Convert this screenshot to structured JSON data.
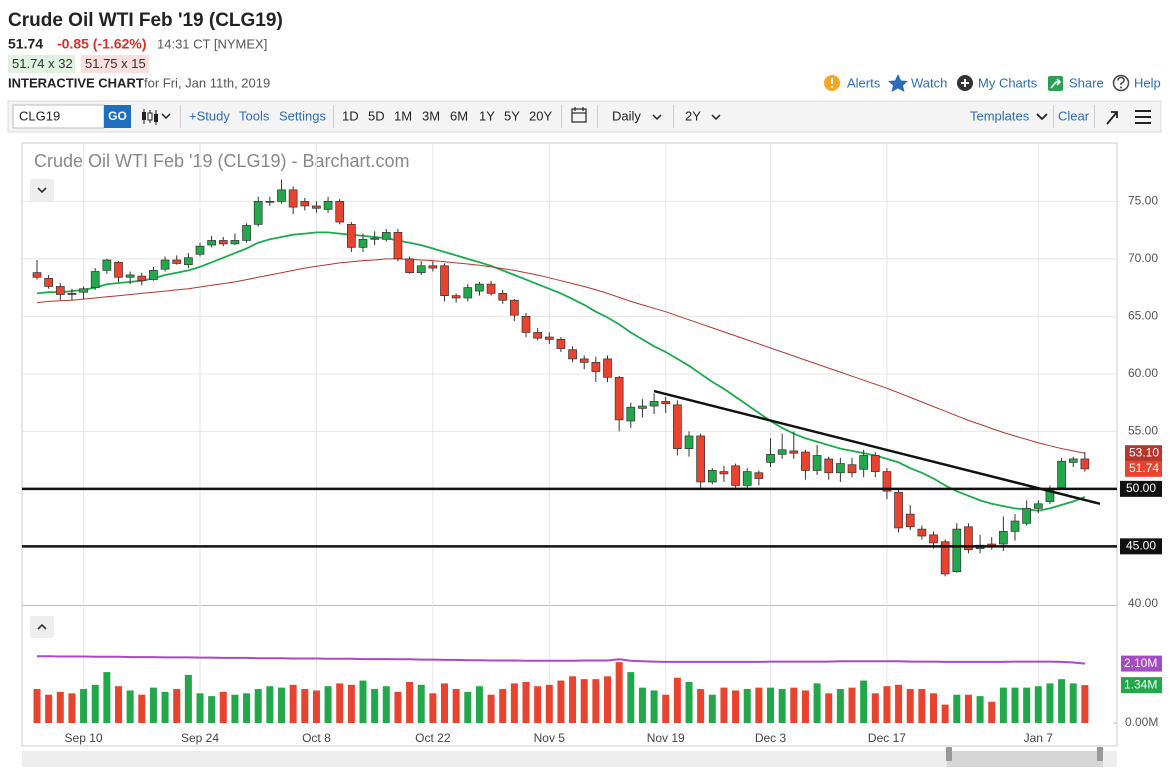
{
  "header": {
    "title": "Crude Oil WTI Feb '19 (CLG19)",
    "last": "51.74",
    "change": "-0.85 (-1.62%)",
    "time": "14:31 CT [NYMEX]",
    "bid": "51.74 x 32",
    "ask": "51.75 x 15",
    "chart_label": "INTERACTIVE CHART",
    "date": "for Fri, Jan 11th, 2019",
    "links": [
      "Alerts",
      "Watch",
      "My Charts",
      "Share",
      "Help"
    ]
  },
  "toolbar": {
    "symbol": "CLG19",
    "go": "GO",
    "study": "+Study",
    "tools": "Tools",
    "settings": "Settings",
    "ranges": [
      "1D",
      "5D",
      "1M",
      "3M",
      "6M",
      "1Y",
      "5Y",
      "20Y"
    ],
    "interval": "Daily",
    "period": "2Y",
    "templates": "Templates",
    "clear": "Clear"
  },
  "chart_data": {
    "type": "candlestick",
    "title": "Crude Oil WTI Feb '19 (CLG19) - Barchart.com",
    "categories": [
      null,
      null,
      null,
      null,
      "Sep 10",
      null,
      null,
      null,
      null,
      null,
      null,
      null,
      null,
      null,
      "Sep 24",
      null,
      null,
      null,
      null,
      null,
      null,
      null,
      null,
      null,
      "Oct 8",
      null,
      null,
      null,
      null,
      null,
      null,
      null,
      null,
      null,
      "Oct 22",
      null,
      null,
      null,
      null,
      null,
      null,
      null,
      null,
      null,
      "Nov 5",
      null,
      null,
      null,
      null,
      null,
      null,
      null,
      null,
      null,
      "Nov 19",
      null,
      null,
      null,
      null,
      null,
      null,
      null,
      null,
      "Dec 3",
      null,
      null,
      null,
      null,
      null,
      null,
      null,
      null,
      null,
      "Dec 17",
      null,
      null,
      null,
      null,
      null,
      null,
      null,
      null,
      null,
      null,
      null,
      null,
      "Jan 7",
      null,
      null,
      null,
      null
    ],
    "open": [
      68.8,
      68.3,
      67.6,
      67.0,
      67.1,
      67.5,
      69.0,
      69.7,
      68.4,
      68.5,
      68.2,
      69.1,
      69.9,
      69.5,
      70.4,
      71.2,
      71.6,
      71.3,
      71.6,
      73.0,
      75.0,
      75.0,
      76.0,
      75.0,
      74.6,
      74.3,
      75.0,
      73.0,
      71.0,
      71.7,
      71.7,
      72.3,
      70.0,
      68.8,
      69.4,
      69.4,
      66.8,
      66.6,
      67.2,
      67.8,
      67.0,
      66.4,
      65.0,
      63.6,
      63.2,
      63.0,
      62.1,
      61.3,
      61.0,
      61.3,
      59.7,
      55.9,
      57.0,
      57.2,
      57.6,
      57.3,
      53.5,
      54.6,
      50.6,
      51.5,
      52.0,
      50.3,
      51.4,
      52.3,
      53.0,
      53.3,
      53.2,
      51.6,
      52.6,
      51.4,
      52.1,
      51.7,
      52.9,
      51.5,
      49.7,
      47.8,
      46.5,
      46.0,
      45.4,
      42.8,
      46.7,
      44.8,
      45.2,
      45.2,
      46.3,
      47.0,
      48.3,
      48.9,
      50.1,
      52.3,
      52.6
    ],
    "high": [
      69.9,
      68.6,
      67.9,
      67.4,
      67.6,
      69.2,
      70.0,
      69.8,
      68.9,
      68.8,
      69.3,
      70.2,
      70.3,
      70.5,
      71.4,
      72.0,
      71.9,
      72.2,
      73.1,
      75.4,
      75.4,
      76.9,
      76.3,
      75.3,
      75.0,
      75.4,
      75.2,
      73.2,
      72.2,
      72.4,
      72.6,
      72.6,
      70.2,
      69.8,
      69.8,
      69.6,
      67.0,
      67.8,
      68.0,
      68.1,
      67.3,
      66.5,
      65.3,
      64.0,
      63.6,
      63.2,
      62.4,
      61.6,
      61.5,
      61.6,
      59.8,
      57.5,
      57.8,
      58.3,
      58.0,
      57.7,
      55.0,
      54.8,
      51.8,
      52.0,
      52.2,
      51.8,
      51.6,
      54.4,
      54.8,
      55.0,
      53.4,
      53.8,
      52.8,
      52.7,
      52.7,
      53.4,
      53.2,
      51.8,
      50.0,
      48.6,
      46.8,
      46.3,
      45.6,
      47.0,
      47.0,
      46.0,
      45.8,
      47.6,
      47.8,
      49.0,
      49.0,
      50.3,
      52.7,
      52.8,
      53.2
    ],
    "low": [
      68.2,
      67.4,
      66.4,
      66.4,
      66.5,
      67.3,
      68.7,
      68.0,
      67.8,
      67.7,
      68.1,
      68.9,
      69.5,
      69.2,
      70.2,
      71.0,
      71.1,
      71.2,
      71.4,
      72.8,
      74.6,
      74.8,
      73.9,
      74.2,
      74.0,
      74.0,
      73.0,
      70.6,
      70.6,
      71.2,
      71.5,
      69.8,
      68.7,
      68.6,
      68.9,
      66.3,
      66.2,
      66.3,
      66.8,
      66.8,
      66.1,
      64.6,
      63.2,
      62.9,
      62.6,
      61.9,
      61.0,
      60.4,
      59.3,
      59.3,
      55.0,
      55.3,
      56.2,
      56.5,
      56.6,
      52.9,
      52.8,
      50.0,
      50.4,
      50.6,
      50.1,
      49.9,
      50.3,
      51.9,
      52.6,
      52.6,
      50.8,
      51.2,
      50.8,
      50.6,
      51.0,
      51.0,
      51.0,
      49.1,
      46.2,
      46.4,
      45.6,
      44.8,
      42.4,
      42.7,
      44.4,
      44.4,
      44.7,
      44.6,
      45.5,
      46.8,
      47.9,
      48.7,
      49.9,
      51.9,
      51.5
    ],
    "close": [
      68.4,
      67.6,
      66.9,
      66.9,
      67.4,
      68.9,
      69.9,
      68.4,
      68.6,
      68.1,
      69.0,
      69.9,
      69.6,
      70.1,
      71.1,
      71.6,
      71.3,
      71.6,
      72.9,
      75.0,
      75.0,
      76.0,
      74.5,
      74.6,
      74.4,
      75.0,
      73.2,
      71.0,
      71.7,
      71.8,
      72.3,
      70.0,
      68.8,
      69.4,
      69.2,
      66.8,
      66.6,
      67.5,
      67.8,
      67.0,
      66.4,
      65.1,
      63.6,
      63.1,
      63.0,
      62.2,
      61.3,
      61.0,
      60.2,
      59.7,
      56.0,
      57.1,
      57.2,
      57.6,
      57.4,
      53.5,
      54.6,
      50.6,
      51.6,
      51.3,
      50.3,
      51.5,
      50.9,
      53.0,
      53.4,
      53.1,
      51.6,
      52.9,
      51.4,
      52.2,
      51.4,
      52.9,
      51.5,
      49.8,
      46.6,
      46.7,
      45.9,
      45.3,
      42.6,
      46.5,
      44.7,
      45.1,
      45.0,
      46.3,
      47.2,
      48.3,
      48.7,
      50.0,
      52.4,
      52.6,
      51.74
    ],
    "up_color": "#22a84a",
    "down_color": "#e8432e",
    "ylim": [
      39.9,
      79.9
    ],
    "yticks": [
      {
        "value": 40,
        "label": "40.00"
      },
      {
        "value": 45,
        "label": "45.00"
      },
      {
        "value": 50,
        "label": "50.00"
      },
      {
        "value": 55,
        "label": "55.00"
      },
      {
        "value": 60,
        "label": "60.00"
      },
      {
        "value": 65,
        "label": "65.00"
      },
      {
        "value": 70,
        "label": "70.00"
      },
      {
        "value": 75,
        "label": "75.00"
      }
    ],
    "grid": true,
    "moving_averages": [
      {
        "color": "#1aab4b",
        "values": [
          67.0,
          67.1,
          67.1,
          67.2,
          67.3,
          67.5,
          67.8,
          67.9,
          68.0,
          68.1,
          68.3,
          68.6,
          68.8,
          69.0,
          69.3,
          69.7,
          70.1,
          70.5,
          70.9,
          71.4,
          71.7,
          71.9,
          72.1,
          72.2,
          72.3,
          72.3,
          72.2,
          72.1,
          72.0,
          71.9,
          71.8,
          71.6,
          71.4,
          71.2,
          70.9,
          70.6,
          70.3,
          70.0,
          69.7,
          69.4,
          69.0,
          68.6,
          68.2,
          67.8,
          67.4,
          67.0,
          66.5,
          66.0,
          65.4,
          64.9,
          64.3,
          63.6,
          63.0,
          62.4,
          61.9,
          61.3,
          60.7,
          60.0,
          59.3,
          58.7,
          58.0,
          57.3,
          56.6,
          55.9,
          55.3,
          54.8,
          54.4,
          54.1,
          53.8,
          53.5,
          53.3,
          53.1,
          52.9,
          52.6,
          52.3,
          51.8,
          51.4,
          50.9,
          50.3,
          49.8,
          49.4,
          49.0,
          48.7,
          48.5,
          48.3,
          48.2,
          48.1,
          48.3,
          48.6,
          48.9,
          49.3
        ]
      },
      {
        "color": "#b5372f",
        "values": [
          66.2,
          66.3,
          66.35,
          66.4,
          66.5,
          66.6,
          66.7,
          66.8,
          66.9,
          67.0,
          67.1,
          67.2,
          67.3,
          67.4,
          67.55,
          67.7,
          67.85,
          68.0,
          68.2,
          68.4,
          68.6,
          68.8,
          69.0,
          69.2,
          69.35,
          69.5,
          69.65,
          69.75,
          69.85,
          69.9,
          70.0,
          70.0,
          69.95,
          69.9,
          69.85,
          69.75,
          69.65,
          69.55,
          69.45,
          69.3,
          69.15,
          69.0,
          68.8,
          68.6,
          68.35,
          68.1,
          67.85,
          67.6,
          67.3,
          67.0,
          66.65,
          66.3,
          66.0,
          65.7,
          65.4,
          65.05,
          64.7,
          64.35,
          64.0,
          63.65,
          63.3,
          62.95,
          62.6,
          62.25,
          61.9,
          61.55,
          61.2,
          60.85,
          60.5,
          60.15,
          59.8,
          59.45,
          59.1,
          58.75,
          58.35,
          57.95,
          57.55,
          57.15,
          56.75,
          56.35,
          55.95,
          55.6,
          55.25,
          54.9,
          54.6,
          54.3,
          54.0,
          53.75,
          53.5,
          53.3,
          53.1
        ]
      }
    ],
    "trendline": {
      "color": "#111111",
      "values": [
        58.5,
        48.7
      ]
    },
    "levels": [
      {
        "value": 50,
        "label": "50.00"
      },
      {
        "value": 45,
        "label": "45.00"
      }
    ],
    "price_labels": [
      {
        "value": 53.1,
        "label": "53.10",
        "color": "#b5372f"
      },
      {
        "value": 51.74,
        "label": "51.74",
        "color": "#e8432e"
      }
    ],
    "volume": {
      "values": [
        1.2,
        1.0,
        1.1,
        1.05,
        1.2,
        1.35,
        1.8,
        1.3,
        1.15,
        1.0,
        1.25,
        1.1,
        1.2,
        1.7,
        1.05,
        0.95,
        1.1,
        1.0,
        1.05,
        1.2,
        1.3,
        1.25,
        1.35,
        1.2,
        1.15,
        1.3,
        1.4,
        1.35,
        1.5,
        1.2,
        1.3,
        1.1,
        1.45,
        1.35,
        1.05,
        1.4,
        1.2,
        1.1,
        1.3,
        1.0,
        1.2,
        1.4,
        1.45,
        1.3,
        1.35,
        1.5,
        1.65,
        1.55,
        1.55,
        1.65,
        2.15,
        1.8,
        1.25,
        1.15,
        1.0,
        1.6,
        1.45,
        1.2,
        1.0,
        1.25,
        1.15,
        1.2,
        1.25,
        1.25,
        1.2,
        1.25,
        1.15,
        1.4,
        1.05,
        1.2,
        1.25,
        1.5,
        1.05,
        1.3,
        1.35,
        1.2,
        1.2,
        1.05,
        0.65,
        1.0,
        1.0,
        0.95,
        0.75,
        1.25,
        1.25,
        1.25,
        1.3,
        1.4,
        1.55,
        1.4,
        1.34
      ],
      "ylim": [
        0,
        4.1
      ],
      "yticks": [
        {
          "value": 0,
          "label": "0.00M"
        }
      ],
      "average": {
        "color": "#a64bc4",
        "values": [
          2.36,
          2.36,
          2.35,
          2.35,
          2.35,
          2.34,
          2.34,
          2.34,
          2.33,
          2.33,
          2.33,
          2.32,
          2.32,
          2.32,
          2.31,
          2.31,
          2.3,
          2.3,
          2.3,
          2.29,
          2.29,
          2.29,
          2.28,
          2.28,
          2.28,
          2.27,
          2.27,
          2.27,
          2.26,
          2.26,
          2.26,
          2.25,
          2.25,
          2.24,
          2.24,
          2.23,
          2.23,
          2.22,
          2.22,
          2.21,
          2.21,
          2.21,
          2.2,
          2.2,
          2.2,
          2.2,
          2.2,
          2.21,
          2.21,
          2.21,
          2.25,
          2.2,
          2.18,
          2.17,
          2.16,
          2.16,
          2.16,
          2.16,
          2.16,
          2.16,
          2.16,
          2.16,
          2.16,
          2.17,
          2.17,
          2.17,
          2.17,
          2.17,
          2.17,
          2.18,
          2.18,
          2.18,
          2.18,
          2.18,
          2.18,
          2.17,
          2.17,
          2.17,
          2.16,
          2.16,
          2.16,
          2.16,
          2.16,
          2.16,
          2.17,
          2.17,
          2.17,
          2.17,
          2.16,
          2.14,
          2.1
        ]
      },
      "labels": [
        {
          "value": 2.1,
          "label": "2.10M",
          "color": "#a64bc4"
        },
        {
          "value": 1.34,
          "label": "1.34M",
          "color": "#22a84a"
        }
      ]
    }
  }
}
